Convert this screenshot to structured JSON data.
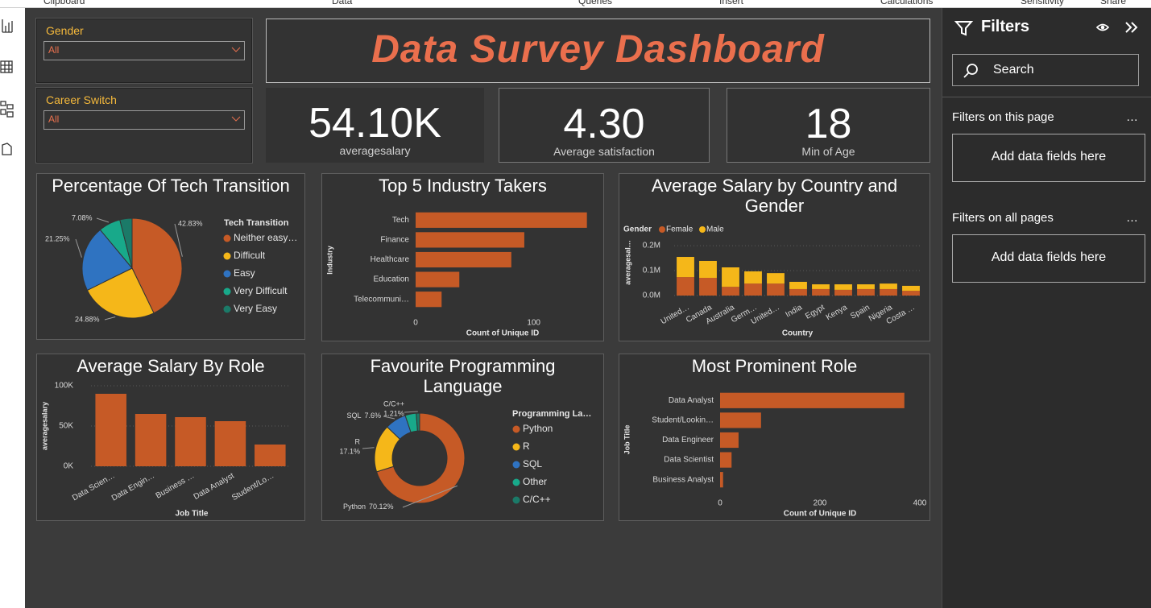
{
  "ui": {
    "ribbon": [
      "Clipboard",
      "Data",
      "Queries",
      "Insert",
      "Calculations",
      "Sensitivity",
      "Share"
    ],
    "slicers": [
      {
        "title": "Gender",
        "value": "All"
      },
      {
        "title": "Career Switch",
        "value": "All"
      }
    ],
    "dashboard_title": "Data Survey Dashboard",
    "cards": [
      {
        "value": "54.10K",
        "label": "averagesalary"
      },
      {
        "value": "4.30",
        "label": "Average satisfaction"
      },
      {
        "value": "18",
        "label": "Min of Age"
      }
    ],
    "filters": {
      "title": "Filters",
      "search": "Search",
      "sections": [
        {
          "title": "Filters on this page",
          "more": "…",
          "placeholder": "Add data fields here"
        },
        {
          "title": "Filters on all pages",
          "more": "…",
          "placeholder": "Add data fields here"
        }
      ]
    }
  },
  "chart_data": [
    {
      "type": "pie",
      "title": "Percentage Of Tech Transition",
      "legend_title": "Tech Transition",
      "categories": [
        "Neither easy…",
        "Difficult",
        "Easy",
        "Very Difficult",
        "Very Easy"
      ],
      "values": [
        42.83,
        24.88,
        21.25,
        7.08,
        3.96
      ],
      "value_labels": [
        "42.83%",
        "24.88%",
        "21.25%",
        "7.08%",
        null
      ],
      "colors": [
        "#c65a26",
        "#f5b719",
        "#2f73c1",
        "#18a98a",
        "#1b7a68"
      ]
    },
    {
      "type": "bar",
      "orientation": "horizontal",
      "title": "Top 5 Industry Takers",
      "categories": [
        "Tech",
        "Finance",
        "Healthcare",
        "Education",
        "Telecommuni…"
      ],
      "values": [
        145,
        92,
        81,
        37,
        22
      ],
      "color": "#c65a26",
      "xlim": [
        0,
        150
      ],
      "xticks": [
        0,
        100
      ],
      "x_label": "Count of Unique ID",
      "y_label": "Industry"
    },
    {
      "type": "bar",
      "stacked": true,
      "title": "Average Salary by Country and Gender",
      "legend_title": "Gender",
      "categories": [
        "United…",
        "Canada",
        "Australia",
        "Germ…",
        "United…",
        "India",
        "Egypt",
        "Kenya",
        "Spain",
        "Nigeria",
        "Costa …"
      ],
      "series": [
        {
          "name": "Female",
          "color": "#c65a26",
          "values": [
            74000,
            71000,
            35000,
            48000,
            48000,
            26000,
            26000,
            23000,
            26000,
            26000,
            19000
          ]
        },
        {
          "name": "Male",
          "color": "#f5b719",
          "values": [
            81000,
            68000,
            78000,
            49000,
            42000,
            29000,
            19000,
            22000,
            19000,
            22000,
            20000
          ]
        }
      ],
      "ylim": [
        0,
        210000
      ],
      "yticks": [
        {
          "value": 0,
          "label": "0.0M"
        },
        {
          "value": 100000,
          "label": "0.1M"
        },
        {
          "value": 200000,
          "label": "0.2M"
        }
      ],
      "grid": true,
      "x_label": "Country",
      "y_label": "averagesal…"
    },
    {
      "type": "bar",
      "title": "Average Salary By Role",
      "categories": [
        "Data Scien…",
        "Data Engin…",
        "Business …",
        "Data Analyst",
        "Student/Lo…"
      ],
      "values": [
        90000,
        65000,
        61000,
        56000,
        27000
      ],
      "color": "#c65a26",
      "ylim": [
        0,
        100000
      ],
      "yticks": [
        {
          "value": 0,
          "label": "0K"
        },
        {
          "value": 50000,
          "label": "50K"
        },
        {
          "value": 100000,
          "label": "100K"
        }
      ],
      "grid": true,
      "x_label": "Job Title",
      "y_label": "averagesalary"
    },
    {
      "type": "donut",
      "title": "Favourite Programming Language",
      "legend_title": "Programming La…",
      "categories": [
        "Python",
        "R",
        "SQL",
        "Other",
        "C/C++"
      ],
      "values": [
        70.12,
        17.1,
        7.6,
        3.97,
        1.21
      ],
      "value_labels": [
        "70.12%",
        "17.1%",
        "7.6%",
        null,
        "1.21%"
      ],
      "colors": [
        "#c65a26",
        "#f5b719",
        "#2f73c1",
        "#18a98a",
        "#1b7a68"
      ]
    },
    {
      "type": "bar",
      "orientation": "horizontal",
      "title": "Most Prominent Role",
      "categories": [
        "Data Analyst",
        "Student/Lookin…",
        "Data Engineer",
        "Data Scientist",
        "Business Analyst"
      ],
      "values": [
        369,
        82,
        37,
        23,
        6
      ],
      "color": "#c65a26",
      "xlim": [
        0,
        400
      ],
      "xticks": [
        0,
        200,
        400
      ],
      "x_label": "Count of Unique ID",
      "y_label": "Job Title"
    }
  ]
}
